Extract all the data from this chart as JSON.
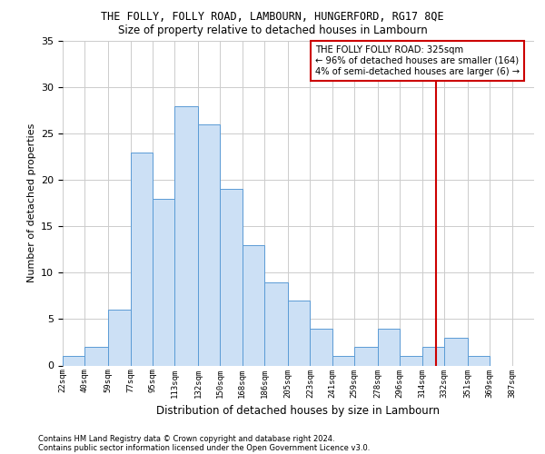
{
  "title_line1": "THE FOLLY, FOLLY ROAD, LAMBOURN, HUNGERFORD, RG17 8QE",
  "title_line2": "Size of property relative to detached houses in Lambourn",
  "xlabel": "Distribution of detached houses by size in Lambourn",
  "ylabel": "Number of detached properties",
  "bin_labels": [
    "22sqm",
    "40sqm",
    "59sqm",
    "77sqm",
    "95sqm",
    "113sqm",
    "132sqm",
    "150sqm",
    "168sqm",
    "186sqm",
    "205sqm",
    "223sqm",
    "241sqm",
    "259sqm",
    "278sqm",
    "296sqm",
    "314sqm",
    "332sqm",
    "351sqm",
    "369sqm",
    "387sqm"
  ],
  "bar_heights": [
    1,
    2,
    6,
    23,
    18,
    28,
    26,
    19,
    13,
    9,
    7,
    4,
    1,
    2,
    4,
    1,
    2,
    3,
    1,
    0,
    0
  ],
  "bar_color": "#cce0f5",
  "bar_edge_color": "#5b9bd5",
  "background_color": "#ffffff",
  "grid_color": "#cccccc",
  "property_value": 325,
  "property_line_color": "#cc0000",
  "annotation_text": "THE FOLLY FOLLY ROAD: 325sqm\n← 96% of detached houses are smaller (164)\n4% of semi-detached houses are larger (6) →",
  "annotation_box_color": "#cc0000",
  "ylim": [
    0,
    35
  ],
  "yticks": [
    0,
    5,
    10,
    15,
    20,
    25,
    30,
    35
  ],
  "footnote1": "Contains HM Land Registry data © Crown copyright and database right 2024.",
  "footnote2": "Contains public sector information licensed under the Open Government Licence v3.0.",
  "bin_edges": [
    22,
    40,
    59,
    77,
    95,
    113,
    132,
    150,
    168,
    186,
    205,
    223,
    241,
    259,
    278,
    296,
    314,
    332,
    351,
    369,
    387,
    405
  ]
}
